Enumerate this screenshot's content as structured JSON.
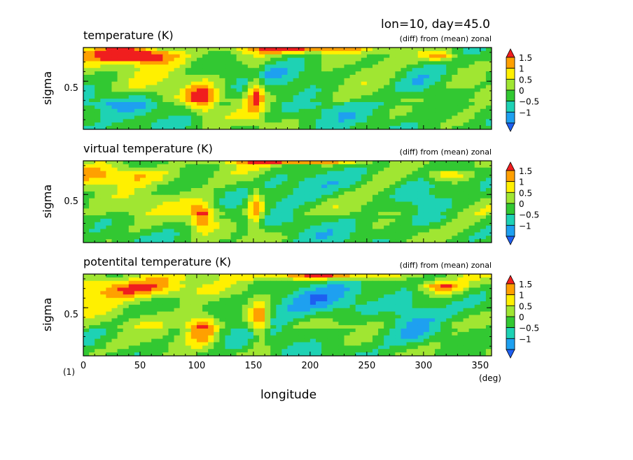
{
  "header": {
    "title": "lon=10, day=45.0",
    "note_prefix": "(1)",
    "x_unit": "(deg)",
    "xlabel": "longitude"
  },
  "colorbar": {
    "levels": [
      -1.5,
      -1,
      -0.5,
      0,
      0.5,
      1,
      1.5
    ],
    "tick_labels": [
      "1.5",
      "1",
      "0.5",
      "0",
      "−0.5",
      "−1"
    ],
    "colors": [
      "#1e5ff0",
      "#1ea0f0",
      "#1ed2b4",
      "#32c832",
      "#a0e632",
      "#fff000",
      "#ffa000",
      "#f01e1e"
    ]
  },
  "chart_data": [
    {
      "type": "heatmap",
      "title": "temperature (K)",
      "subtitle": "(diff) from (mean) zonal",
      "xlabel": "longitude",
      "ylabel": "sigma",
      "xlim": [
        0,
        360
      ],
      "x_ticks": [
        0,
        50,
        100,
        150,
        200,
        250,
        300,
        350
      ],
      "y_ticks": [
        0.5
      ],
      "y_tick_labels": [
        "0.5"
      ],
      "ylim": [
        1.0,
        0.15
      ],
      "value_range": [
        -1.5,
        1.5
      ],
      "features": [
        {
          "lon": 40,
          "sigma": 0.22,
          "w": 40,
          "h": 0.08,
          "value": 1.6
        },
        {
          "lon": 60,
          "sigma": 0.25,
          "w": 30,
          "h": 0.1,
          "value": 1.2
        },
        {
          "lon": 105,
          "sigma": 0.68,
          "w": 12,
          "h": 0.15,
          "value": 1.8
        },
        {
          "lon": 152,
          "sigma": 0.62,
          "w": 8,
          "h": 0.22,
          "value": 1.8
        },
        {
          "lon": 195,
          "sigma": 0.17,
          "w": 55,
          "h": 0.04,
          "value": 1.7
        },
        {
          "lon": 315,
          "sigma": 0.24,
          "w": 15,
          "h": 0.05,
          "value": 1.4
        },
        {
          "lon": 30,
          "sigma": 0.72,
          "w": 35,
          "h": 0.1,
          "value": -1.0
        },
        {
          "lon": 190,
          "sigma": 0.42,
          "w": 40,
          "h": 0.18,
          "value": -0.8
        },
        {
          "lon": 300,
          "sigma": 0.55,
          "w": 25,
          "h": 0.25,
          "value": -0.8
        }
      ]
    },
    {
      "type": "heatmap",
      "title": "virtual temperature (K)",
      "subtitle": "(diff) from (mean) zonal",
      "xlabel": "longitude",
      "ylabel": "sigma",
      "xlim": [
        0,
        360
      ],
      "x_ticks": [
        0,
        50,
        100,
        150,
        200,
        250,
        300,
        350
      ],
      "y_ticks": [
        0.5
      ],
      "y_tick_labels": [
        "0.5"
      ],
      "ylim": [
        1.0,
        0.15
      ],
      "value_range": [
        -1.5,
        1.5
      ],
      "features": [
        {
          "lon": 45,
          "sigma": 0.3,
          "w": 45,
          "h": 0.1,
          "value": 1.2
        },
        {
          "lon": 105,
          "sigma": 0.72,
          "w": 12,
          "h": 0.14,
          "value": 1.8
        },
        {
          "lon": 152,
          "sigma": 0.65,
          "w": 8,
          "h": 0.22,
          "value": 1.6
        },
        {
          "lon": 190,
          "sigma": 0.16,
          "w": 60,
          "h": 0.03,
          "value": 1.6
        },
        {
          "lon": 320,
          "sigma": 0.3,
          "w": 15,
          "h": 0.05,
          "value": 1.3
        },
        {
          "lon": 200,
          "sigma": 0.4,
          "w": 50,
          "h": 0.2,
          "value": -1.0
        },
        {
          "lon": 300,
          "sigma": 0.55,
          "w": 25,
          "h": 0.25,
          "value": -0.8
        }
      ]
    },
    {
      "type": "heatmap",
      "title": "potentital temperature (K)",
      "subtitle": "(diff) from (mean) zonal",
      "xlabel": "longitude",
      "ylabel": "sigma",
      "xlim": [
        0,
        360
      ],
      "x_ticks": [
        0,
        50,
        100,
        150,
        200,
        250,
        300,
        350
      ],
      "y_ticks": [
        0.5
      ],
      "y_tick_labels": [
        "0.5"
      ],
      "ylim": [
        1.0,
        0.15
      ],
      "value_range": [
        -1.5,
        1.5
      ],
      "features": [
        {
          "lon": 50,
          "sigma": 0.3,
          "w": 50,
          "h": 0.12,
          "value": 1.8
        },
        {
          "lon": 105,
          "sigma": 0.72,
          "w": 14,
          "h": 0.16,
          "value": 1.8
        },
        {
          "lon": 155,
          "sigma": 0.65,
          "w": 9,
          "h": 0.22,
          "value": 1.8
        },
        {
          "lon": 210,
          "sigma": 0.17,
          "w": 70,
          "h": 0.04,
          "value": 1.7
        },
        {
          "lon": 315,
          "sigma": 0.28,
          "w": 18,
          "h": 0.06,
          "value": 1.6
        },
        {
          "lon": 200,
          "sigma": 0.42,
          "w": 55,
          "h": 0.22,
          "value": -1.3
        },
        {
          "lon": 290,
          "sigma": 0.6,
          "w": 25,
          "h": 0.25,
          "value": -1.0
        }
      ]
    }
  ]
}
